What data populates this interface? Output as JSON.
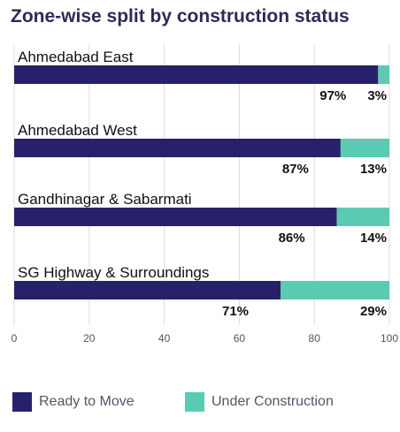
{
  "chart_data": {
    "type": "bar",
    "orientation": "horizontal",
    "stacked": true,
    "title": "Zone-wise split by construction status",
    "categories": [
      "Ahmedabad East",
      "Ahmedabad West",
      "Gandhinagar & Sabarmati",
      "SG Highway & Surroundings"
    ],
    "series": [
      {
        "name": "Ready to Move",
        "values": [
          97,
          87,
          86,
          71
        ],
        "labels": [
          "97%",
          "87%",
          "86%",
          "71%"
        ],
        "color": "#27216b"
      },
      {
        "name": "Under Construction",
        "values": [
          3,
          13,
          14,
          29
        ],
        "labels": [
          "3%",
          "13%",
          "14%",
          "29%"
        ],
        "color": "#5acbb2"
      }
    ],
    "xlim": [
      0,
      100
    ],
    "xticks": [
      0,
      20,
      40,
      60,
      80,
      100
    ],
    "grid": true,
    "legend_position": "bottom"
  }
}
